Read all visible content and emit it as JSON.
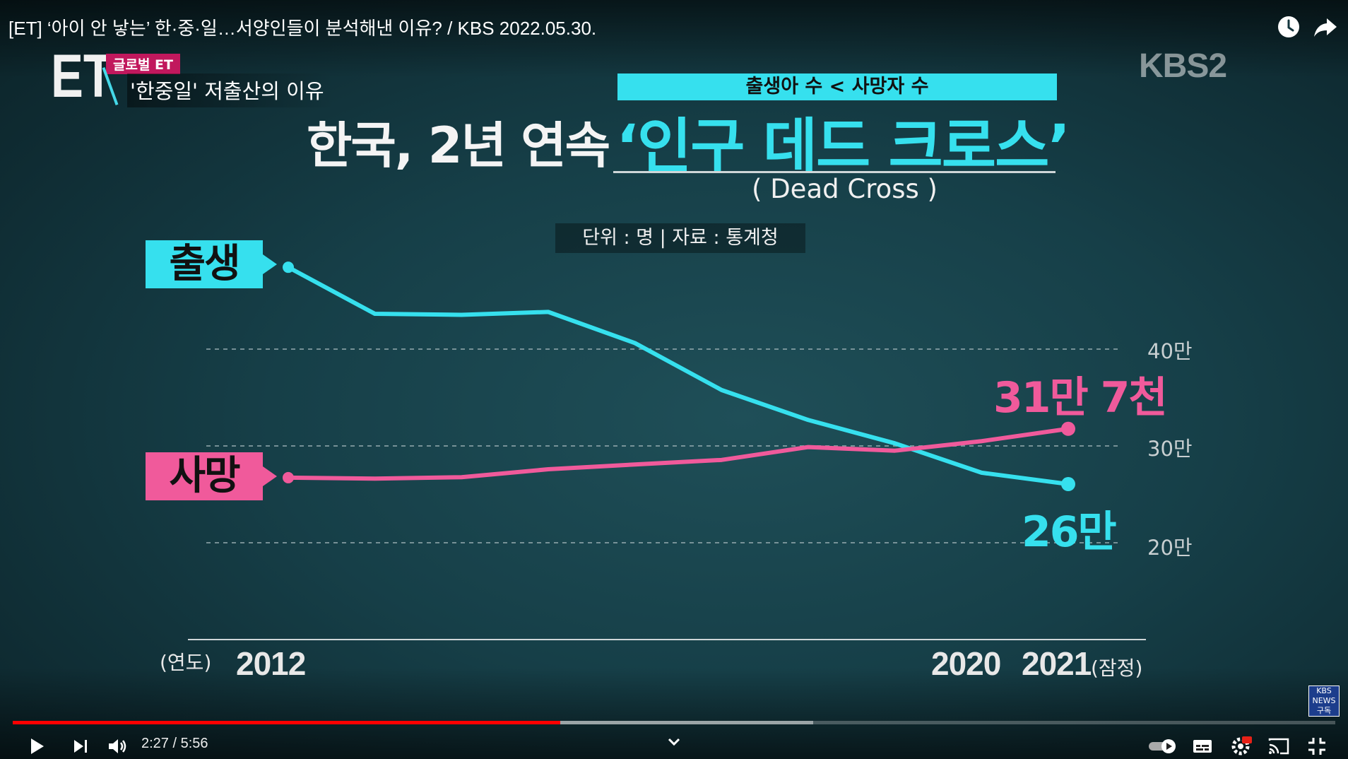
{
  "player": {
    "title": "[ET] ‘아이 안 낳는’ 한·중·일…서양인들이 분석해낸 이유? / KBS 2022.05.30.",
    "time_current": "2:27",
    "time_separator": "/",
    "time_total": "5:56",
    "progress_played_fraction": 0.414,
    "progress_buffered_fraction": 0.605
  },
  "overlay": {
    "channel_logo": "KBS2",
    "et_logo": "ET",
    "et_tag": "글로벌 ET",
    "et_subtitle": "'한중일' 저출산의 이유",
    "banner": "출생아 수 < 사망자 수",
    "headline": "한국, 2년 연속",
    "headline_highlight": "‘인구 데드 크로스’",
    "headline_en": "( Dead Cross )",
    "unit_note": "단위 : 명  |  자료 : 통계청",
    "subscribe_badge": "KBS NEWS 구독"
  },
  "chart_data": {
    "type": "line",
    "title": "한국, 2년 연속 ‘인구 데드 크로스’",
    "x": [
      2012,
      2013,
      2014,
      2015,
      2016,
      2017,
      2018,
      2019,
      2020,
      2021
    ],
    "x_tick_labels": [
      "2012",
      "2020",
      "2021"
    ],
    "x_tick_suffix": "(잠정)",
    "xlabel": "(연도)",
    "ylim": [
      200000,
      450000
    ],
    "y_tick_labels": [
      "40만",
      "30만",
      "20만"
    ],
    "grid": true,
    "series": [
      {
        "name": "출생",
        "color": "#36e0ee",
        "values": [
          484550,
          436455,
          435435,
          438420,
          406243,
          357771,
          326822,
          302676,
          272337,
          260562
        ],
        "end_label": "26만"
      },
      {
        "name": "사망",
        "color": "#f05a9b",
        "values": [
          267221,
          266257,
          267692,
          275895,
          280827,
          285534,
          298820,
          295110,
          304948,
          317680
        ],
        "end_label": "31만 7천"
      }
    ]
  }
}
